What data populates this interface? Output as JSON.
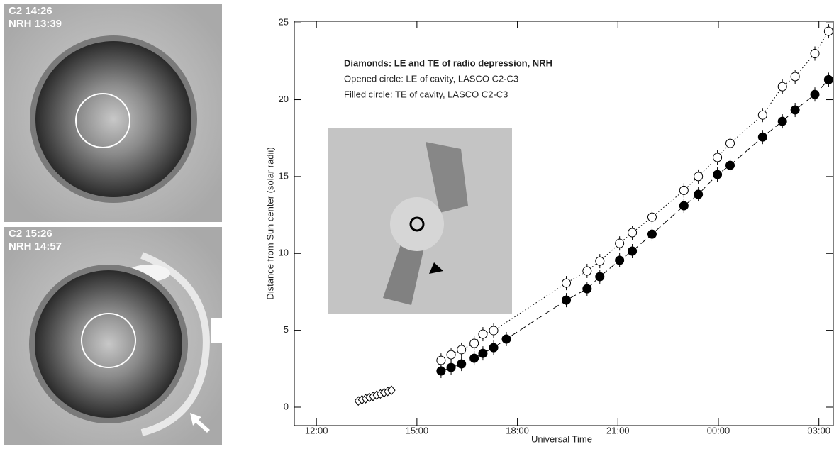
{
  "panels": [
    {
      "lines": [
        "C2 14:26",
        "NRH 13:39"
      ]
    },
    {
      "lines": [
        "C2 15:26",
        "NRH 14:57"
      ]
    }
  ],
  "chart_data": {
    "type": "scatter",
    "xlabel": "Universal Time",
    "ylabel": "Distance from Sun center (solar radii)",
    "annotations": [
      "Diamonds: LE and TE of radio depression, NRH",
      "Opened circle: LE of cavity, LASCO C2-C3",
      "Filled circle: TE of cavity, LASCO C2-C3"
    ],
    "xlim": [
      11.34,
      27.43
    ],
    "ylim": [
      -1.2,
      25.1
    ],
    "xticks": [
      {
        "value": 12,
        "label": "12:00"
      },
      {
        "value": 15,
        "label": "15:00"
      },
      {
        "value": 18,
        "label": "18:00"
      },
      {
        "value": 21,
        "label": "21:00"
      },
      {
        "value": 24,
        "label": "00:00"
      },
      {
        "value": 27,
        "label": "03:00"
      }
    ],
    "yticks": [
      0,
      5,
      10,
      15,
      20,
      25
    ],
    "series": [
      {
        "marker": "diamond-open",
        "line": "dashed",
        "color": "#000000",
        "x": [
          13.25,
          13.36,
          13.47,
          13.58,
          13.69,
          13.8,
          13.91,
          14.02,
          14.13,
          14.24
        ],
        "values": [
          0.4,
          0.48,
          0.55,
          0.63,
          0.7,
          0.78,
          0.86,
          0.94,
          1.02,
          1.1
        ]
      },
      {
        "marker": "circle-open",
        "line": "dotted",
        "color": "#000000",
        "x": [
          15.72,
          16.02,
          16.33,
          16.71,
          16.97,
          17.29,
          19.46,
          20.08,
          20.46,
          21.05,
          21.43,
          22.02,
          22.97,
          23.4,
          23.97,
          24.35,
          25.32,
          25.91,
          26.29,
          26.88,
          27.29
        ],
        "values": [
          3.04,
          3.41,
          3.74,
          4.15,
          4.75,
          4.98,
          8.07,
          8.86,
          9.5,
          10.65,
          11.35,
          12.36,
          14.1,
          15.0,
          16.24,
          17.16,
          19.0,
          20.85,
          21.5,
          23.0,
          24.45
        ]
      },
      {
        "marker": "circle-filled",
        "line": "dashed",
        "color": "#000000",
        "x": [
          15.72,
          16.02,
          16.33,
          16.71,
          16.97,
          17.29,
          17.67,
          19.46,
          20.08,
          20.46,
          21.05,
          21.43,
          22.02,
          22.97,
          23.4,
          23.97,
          24.35,
          25.32,
          25.91,
          26.29,
          26.88,
          27.29
        ],
        "values": [
          2.35,
          2.58,
          2.81,
          3.18,
          3.5,
          3.87,
          4.43,
          6.96,
          7.7,
          8.49,
          9.55,
          10.15,
          11.25,
          13.1,
          13.84,
          15.13,
          15.73,
          17.57,
          18.59,
          19.33,
          20.34,
          21.3
        ]
      }
    ]
  }
}
